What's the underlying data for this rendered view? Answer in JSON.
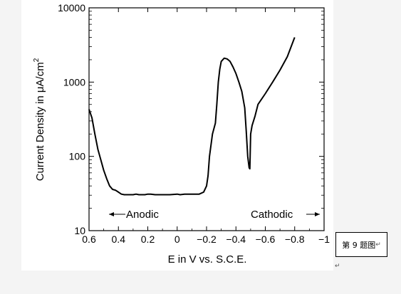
{
  "caption": {
    "text": "第 9 题图",
    "mark": "↵"
  },
  "chart_data": {
    "type": "line",
    "xlabel": "E in V vs. S.C.E.",
    "ylabel_main": "Current Density in μA/cm",
    "ylabel_sup": "2",
    "x_range": [
      0.6,
      -1.0
    ],
    "y_range": [
      10,
      10000
    ],
    "y_scale": "log",
    "x_ticks": [
      {
        "v": 0.6,
        "label": "0.6"
      },
      {
        "v": 0.4,
        "label": "0.4"
      },
      {
        "v": 0.2,
        "label": "0.2"
      },
      {
        "v": 0.0,
        "label": "0"
      },
      {
        "v": -0.2,
        "label": "−0.2"
      },
      {
        "v": -0.4,
        "label": "−0.4"
      },
      {
        "v": -0.6,
        "label": "−0.6"
      },
      {
        "v": -0.8,
        "label": "−0.8"
      },
      {
        "v": -1.0,
        "label": "−1"
      }
    ],
    "y_ticks": [
      {
        "v": 10,
        "label": "10"
      },
      {
        "v": 100,
        "label": "100"
      },
      {
        "v": 1000,
        "label": "1000"
      },
      {
        "v": 10000,
        "label": "10000"
      }
    ],
    "annotations": {
      "anodic": "Anodic",
      "cathodic": "Cathodic"
    },
    "line_color": "#000000",
    "series": [
      {
        "points": [
          [
            0.6,
            430
          ],
          [
            0.58,
            330
          ],
          [
            0.56,
            200
          ],
          [
            0.54,
            125
          ],
          [
            0.52,
            90
          ],
          [
            0.5,
            65
          ],
          [
            0.48,
            50
          ],
          [
            0.46,
            40
          ],
          [
            0.44,
            36
          ],
          [
            0.42,
            35
          ],
          [
            0.4,
            33
          ],
          [
            0.38,
            31
          ],
          [
            0.36,
            30.5
          ],
          [
            0.34,
            30.5
          ],
          [
            0.32,
            30.5
          ],
          [
            0.3,
            30.5
          ],
          [
            0.28,
            31
          ],
          [
            0.26,
            30.5
          ],
          [
            0.24,
            30.5
          ],
          [
            0.22,
            30.5
          ],
          [
            0.2,
            31
          ],
          [
            0.18,
            31
          ],
          [
            0.15,
            30.5
          ],
          [
            0.1,
            30.5
          ],
          [
            0.05,
            30.5
          ],
          [
            0.0,
            31
          ],
          [
            -0.02,
            30.5
          ],
          [
            -0.05,
            31
          ],
          [
            -0.1,
            31
          ],
          [
            -0.15,
            31
          ],
          [
            -0.18,
            33
          ],
          [
            -0.2,
            40
          ],
          [
            -0.21,
            55
          ],
          [
            -0.22,
            100
          ],
          [
            -0.24,
            200
          ],
          [
            -0.26,
            280
          ],
          [
            -0.27,
            500
          ],
          [
            -0.28,
            1000
          ],
          [
            -0.29,
            1500
          ],
          [
            -0.3,
            1900
          ],
          [
            -0.32,
            2100
          ],
          [
            -0.34,
            2050
          ],
          [
            -0.36,
            1900
          ],
          [
            -0.38,
            1600
          ],
          [
            -0.4,
            1300
          ],
          [
            -0.42,
            1000
          ],
          [
            -0.44,
            750
          ],
          [
            -0.46,
            450
          ],
          [
            -0.47,
            220
          ],
          [
            -0.48,
            100
          ],
          [
            -0.49,
            70
          ],
          [
            -0.495,
            68
          ],
          [
            -0.5,
            200
          ],
          [
            -0.51,
            260
          ],
          [
            -0.53,
            350
          ],
          [
            -0.55,
            500
          ],
          [
            -0.6,
            700
          ],
          [
            -0.65,
            1000
          ],
          [
            -0.7,
            1450
          ],
          [
            -0.75,
            2200
          ],
          [
            -0.8,
            4000
          ]
        ]
      }
    ]
  }
}
